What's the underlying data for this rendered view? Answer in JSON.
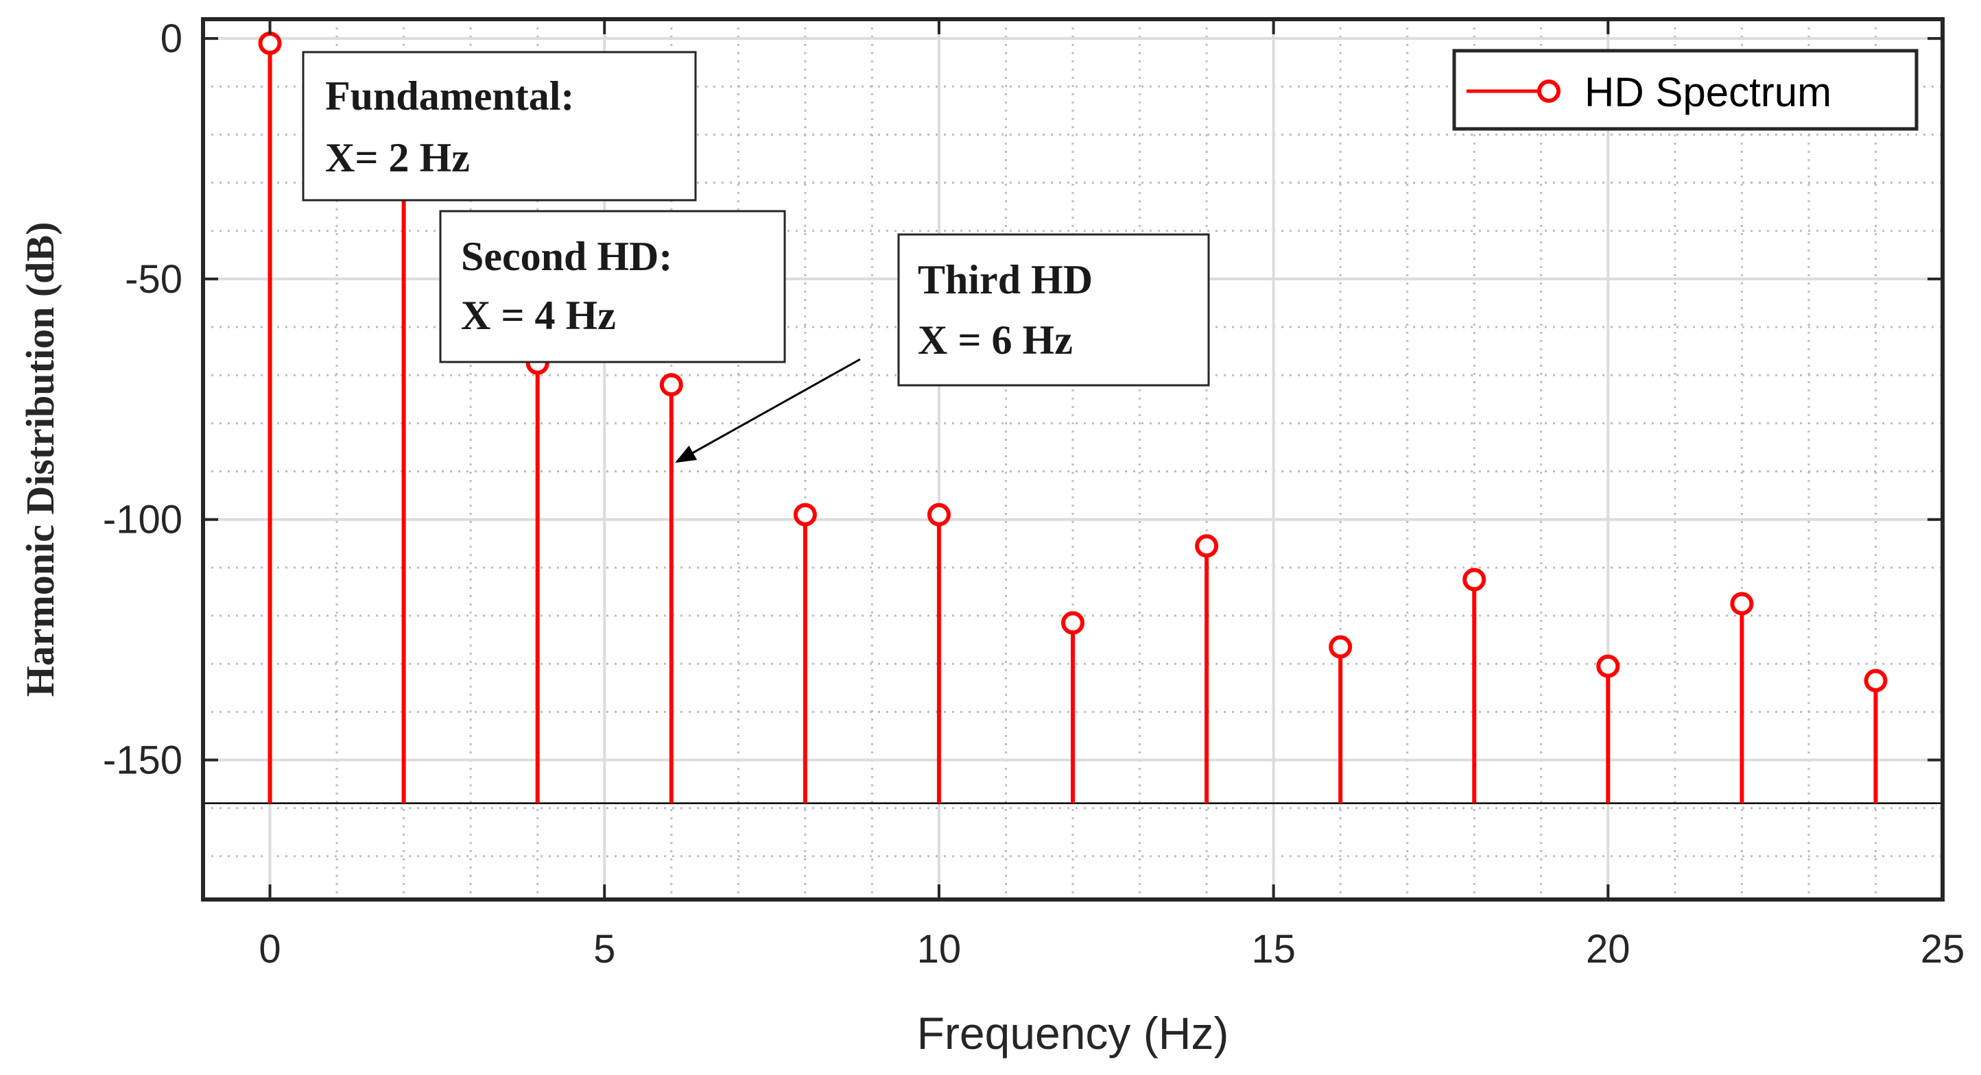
{
  "chart_data": {
    "type": "stem",
    "xlabel": "Frequency (Hz)",
    "ylabel": "Harmonic Distribution (dB)",
    "xlim": [
      -1,
      25
    ],
    "ylim": [
      -179,
      4
    ],
    "xticks": [
      0,
      5,
      10,
      15,
      20,
      25
    ],
    "xtick_labels": [
      "0",
      "5",
      "10",
      "15",
      "20",
      "25"
    ],
    "yticks": [
      0,
      -50,
      -100,
      -150
    ],
    "ytick_labels": [
      "0",
      "-50",
      "-100",
      "-150"
    ],
    "grid": true,
    "minor_grid": true,
    "baseline": -159,
    "legend": {
      "label": "HD Spectrum",
      "location": "top-right"
    },
    "color": "#ff0000",
    "series": [
      {
        "name": "HD Spectrum",
        "x": [
          0,
          2,
          4,
          6,
          8,
          10,
          12,
          14,
          16,
          18,
          20,
          22,
          24
        ],
        "y": [
          -1,
          -26,
          -67.5,
          -72,
          -99,
          -99,
          -121.5,
          -105.5,
          -126.5,
          -112.5,
          -130.5,
          -117.5,
          -133.5
        ]
      }
    ],
    "annotations": [
      {
        "lines": [
          "Fundamental:",
          "X= 2 Hz"
        ],
        "has_arrow": false
      },
      {
        "lines": [
          "Second HD:",
          "X = 4 Hz"
        ],
        "has_arrow": false
      },
      {
        "lines": [
          "Third HD",
          "X = 6 Hz"
        ],
        "has_arrow": true,
        "arrow_target": {
          "x": 6,
          "y": -88
        }
      }
    ]
  }
}
